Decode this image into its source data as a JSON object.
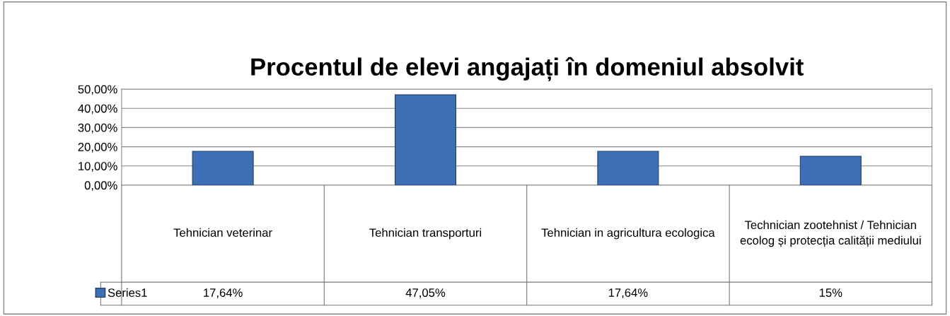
{
  "chart_data": {
    "type": "bar",
    "title": "Procentul de elevi angajați în domeniul absolvit",
    "categories": [
      "Tehnician veterinar",
      "Tehnician transporturi",
      "Tehnician in agricultura ecologica",
      "Technician zootehnist / Tehnician ecolog și protecția calității mediului"
    ],
    "series": [
      {
        "name": "Series1",
        "color": "#3d6fb4",
        "values": [
          17.64,
          47.05,
          17.64,
          15
        ],
        "value_labels": [
          "17,64%",
          "47,05%",
          "17,64%",
          "15%"
        ]
      }
    ],
    "ylim": [
      0,
      50
    ],
    "yticks": [
      {
        "value": 0,
        "label": "0,00%"
      },
      {
        "value": 10,
        "label": "10,00%"
      },
      {
        "value": 20,
        "label": "20,00%"
      },
      {
        "value": 30,
        "label": "30,00%"
      },
      {
        "value": 40,
        "label": "40,00%"
      },
      {
        "value": 50,
        "label": "50,00%"
      }
    ],
    "grid": "y",
    "legend": "bottom"
  }
}
